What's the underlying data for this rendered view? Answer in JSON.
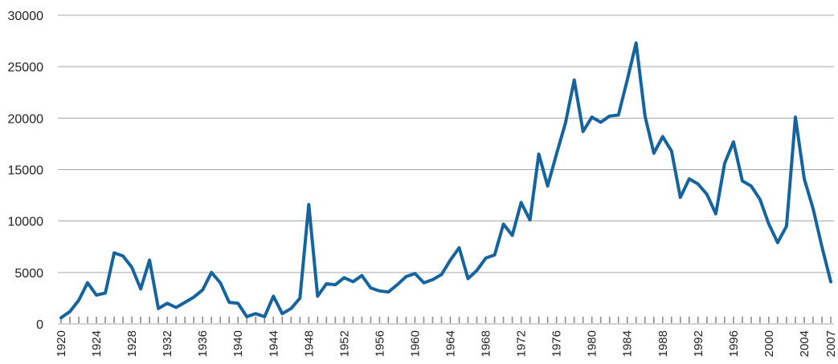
{
  "chart_data": {
    "type": "line",
    "title": "",
    "xlabel": "",
    "ylabel": "",
    "xlim": [
      1920,
      2007
    ],
    "ylim": [
      0,
      30000
    ],
    "yticks": [
      "0",
      "5000",
      "10000",
      "15000",
      "20000",
      "25000",
      "30000"
    ],
    "xticks": [
      "1920",
      "1924",
      "1928",
      "1932",
      "1936",
      "1940",
      "1944",
      "1948",
      "1952",
      "1956",
      "1960",
      "1964",
      "1968",
      "1972",
      "1976",
      "1980",
      "1984",
      "1988",
      "1992",
      "1996",
      "2000",
      "2004",
      "2007"
    ],
    "grid": true,
    "legend": "none",
    "color": "#1464a0",
    "x": [
      1920,
      1921,
      1922,
      1923,
      1924,
      1925,
      1926,
      1927,
      1928,
      1929,
      1930,
      1931,
      1932,
      1933,
      1934,
      1935,
      1936,
      1937,
      1938,
      1939,
      1940,
      1941,
      1942,
      1943,
      1944,
      1945,
      1946,
      1947,
      1948,
      1949,
      1950,
      1951,
      1952,
      1953,
      1954,
      1955,
      1956,
      1957,
      1958,
      1959,
      1960,
      1961,
      1962,
      1963,
      1964,
      1965,
      1966,
      1967,
      1968,
      1969,
      1970,
      1971,
      1972,
      1973,
      1974,
      1975,
      1976,
      1977,
      1978,
      1979,
      1980,
      1981,
      1982,
      1983,
      1984,
      1985,
      1986,
      1987,
      1988,
      1989,
      1990,
      1991,
      1992,
      1993,
      1994,
      1995,
      1996,
      1997,
      1998,
      1999,
      2000,
      2001,
      2002,
      2003,
      2004,
      2005,
      2006,
      2007
    ],
    "values": [
      600,
      1200,
      2300,
      4000,
      2800,
      3000,
      6900,
      6600,
      5500,
      3400,
      6200,
      1500,
      2000,
      1600,
      2100,
      2600,
      3300,
      5000,
      4000,
      2100,
      2000,
      700,
      1000,
      700,
      2700,
      1000,
      1500,
      2500,
      11600,
      2700,
      3900,
      3800,
      4500,
      4100,
      4700,
      3500,
      3200,
      3100,
      3800,
      4600,
      4900,
      4000,
      4300,
      4800,
      6200,
      7400,
      4400,
      5200,
      6400,
      6700,
      9700,
      8600,
      11800,
      10100,
      16500,
      13400,
      16500,
      19500,
      23700,
      18700,
      20100,
      19600,
      20200,
      20300,
      23700,
      27300,
      20200,
      16600,
      18200,
      16800,
      12300,
      14100,
      13600,
      12600,
      10700,
      15600,
      17700,
      13900,
      13400,
      12100,
      9700,
      7900,
      9500,
      20100,
      14100,
      11200,
      7500,
      4100
    ]
  }
}
